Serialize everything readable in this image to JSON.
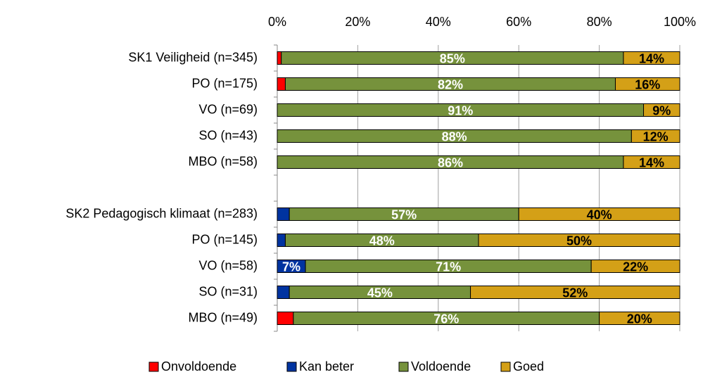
{
  "chart_data": {
    "type": "stacked_barh",
    "categories": [
      "SK1 Veiligheid (n=345)",
      "PO (n=175)",
      "VO (n=69)",
      "SO (n=43)",
      "MBO (n=58)",
      null,
      "SK2 Pedagogisch klimaat (n=283)",
      "PO (n=145)",
      "VO (n=58)",
      "SO (n=31)",
      "MBO (n=49)"
    ],
    "series": [
      {
        "name": "Onvoldoende",
        "color": "#ff0000",
        "label_color": "#ffffff",
        "values": [
          1,
          2,
          0,
          0,
          0,
          null,
          0,
          0,
          0,
          0,
          4
        ],
        "value_labels": [
          null,
          null,
          null,
          null,
          null,
          null,
          null,
          null,
          null,
          null,
          null
        ]
      },
      {
        "name": "Kan beter",
        "color": "#0033a0",
        "label_color": "#ffffff",
        "values": [
          0,
          0,
          0,
          0,
          0,
          null,
          3,
          2,
          7,
          3,
          0
        ],
        "value_labels": [
          null,
          null,
          null,
          null,
          null,
          null,
          null,
          null,
          "7%",
          null,
          null
        ]
      },
      {
        "name": "Voldoende",
        "color": "#76923c",
        "label_color": "#ffffff",
        "values": [
          85,
          82,
          91,
          88,
          86,
          null,
          57,
          48,
          71,
          45,
          76
        ],
        "value_labels": [
          "85%",
          "82%",
          "91%",
          "88%",
          "86%",
          null,
          "57%",
          "48%",
          "71%",
          "45%",
          "76%"
        ]
      },
      {
        "name": "Goed",
        "color": "#d4a017",
        "label_color": "#000000",
        "values": [
          14,
          16,
          9,
          12,
          14,
          null,
          40,
          50,
          22,
          52,
          20
        ],
        "value_labels": [
          "14%",
          "16%",
          "9%",
          "12%",
          "14%",
          null,
          "40%",
          "50%",
          "22%",
          "52%",
          "20%"
        ]
      }
    ],
    "xlim": [
      0,
      100
    ],
    "xticks": [
      {
        "value": 0,
        "label": "0%"
      },
      {
        "value": 20,
        "label": "20%"
      },
      {
        "value": 40,
        "label": "40%"
      },
      {
        "value": 60,
        "label": "60%"
      },
      {
        "value": 80,
        "label": "80%"
      },
      {
        "value": 100,
        "label": "100%"
      }
    ],
    "grid": true,
    "legend": "bottom"
  }
}
